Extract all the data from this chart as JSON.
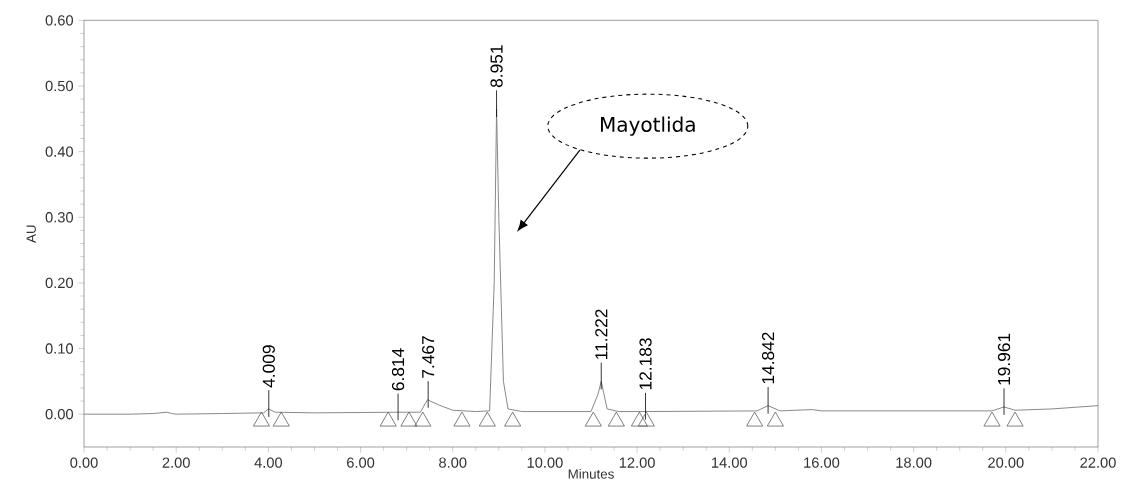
{
  "chart_data": {
    "type": "line",
    "xlabel": "Minutes",
    "ylabel": "AU",
    "xlim": [
      0,
      22
    ],
    "ylim": [
      -0.05,
      0.6
    ],
    "xticks": [
      {
        "value": 0,
        "label": "0.00"
      },
      {
        "value": 2,
        "label": "2.00"
      },
      {
        "value": 4,
        "label": "4.00"
      },
      {
        "value": 6,
        "label": "6.00"
      },
      {
        "value": 8,
        "label": "8.00"
      },
      {
        "value": 10,
        "label": "10.00"
      },
      {
        "value": 12,
        "label": "12.00"
      },
      {
        "value": 14,
        "label": "14.00"
      },
      {
        "value": 16,
        "label": "16.00"
      },
      {
        "value": 18,
        "label": "18.00"
      },
      {
        "value": 20,
        "label": "20.00"
      },
      {
        "value": 22,
        "label": "22.00"
      }
    ],
    "yticks": [
      {
        "value": 0,
        "label": "0.00"
      },
      {
        "value": 0.1,
        "label": "0.10"
      },
      {
        "value": 0.2,
        "label": "0.20"
      },
      {
        "value": 0.3,
        "label": "0.30"
      },
      {
        "value": 0.4,
        "label": "0.40"
      },
      {
        "value": 0.5,
        "label": "0.50"
      },
      {
        "value": 0.6,
        "label": "0.60"
      }
    ],
    "marker": "none",
    "line_style": "solid",
    "series": [
      {
        "color": "#808080",
        "x": [
          0,
          1.0,
          1.5,
          1.8,
          1.9,
          2.0,
          3.0,
          3.9,
          4.0,
          4.15,
          5.0,
          6.8,
          7.3,
          7.45,
          7.7,
          8.0,
          8.5,
          8.8,
          8.9,
          8.951,
          9.0,
          9.1,
          9.2,
          9.5,
          11.0,
          11.15,
          11.222,
          11.35,
          11.6,
          12.183,
          14.6,
          14.842,
          15.1,
          15.8,
          16.0,
          18.0,
          19.7,
          19.961,
          20.2,
          21.0,
          22.0
        ],
        "values": [
          0.0,
          0.0,
          0.001,
          0.003,
          0.001,
          0.0,
          0.001,
          0.002,
          0.008,
          0.003,
          0.002,
          0.003,
          0.003,
          0.022,
          0.014,
          0.006,
          0.004,
          0.005,
          0.2,
          0.465,
          0.3,
          0.05,
          0.008,
          0.004,
          0.004,
          0.03,
          0.05,
          0.008,
          0.004,
          0.004,
          0.005,
          0.013,
          0.005,
          0.007,
          0.005,
          0.005,
          0.005,
          0.011,
          0.006,
          0.008,
          0.013
        ]
      },
      {
        "type": "scatter",
        "marker": "triangle",
        "color": "#606060",
        "x": [
          3.85,
          4.28,
          6.6,
          7.05,
          7.35,
          8.2,
          8.75,
          9.3,
          11.05,
          11.55,
          12.05,
          12.2,
          14.55,
          15.0,
          19.7,
          20.2
        ],
        "values": [
          -0.011,
          -0.011,
          -0.011,
          -0.011,
          -0.011,
          -0.011,
          -0.011,
          -0.011,
          -0.011,
          -0.011,
          -0.011,
          -0.011,
          -0.011,
          -0.011,
          -0.011,
          -0.011
        ]
      }
    ],
    "annotations": [
      "Mayotlida",
      {
        "text": "4.009",
        "x": 4.009,
        "y": 0.008
      },
      {
        "text": "6.814",
        "x": 6.814,
        "y": 0.003
      },
      {
        "text": "7.467",
        "x": 7.467,
        "y": 0.022
      },
      {
        "text": "8.951",
        "x": 8.951,
        "y": 0.465
      },
      {
        "text": "11.222",
        "x": 11.222,
        "y": 0.05
      },
      {
        "text": "12.183",
        "x": 12.183,
        "y": 0.004
      },
      {
        "text": "14.842",
        "x": 14.842,
        "y": 0.013
      },
      {
        "text": "19.961",
        "x": 19.961,
        "y": 0.011
      }
    ]
  }
}
